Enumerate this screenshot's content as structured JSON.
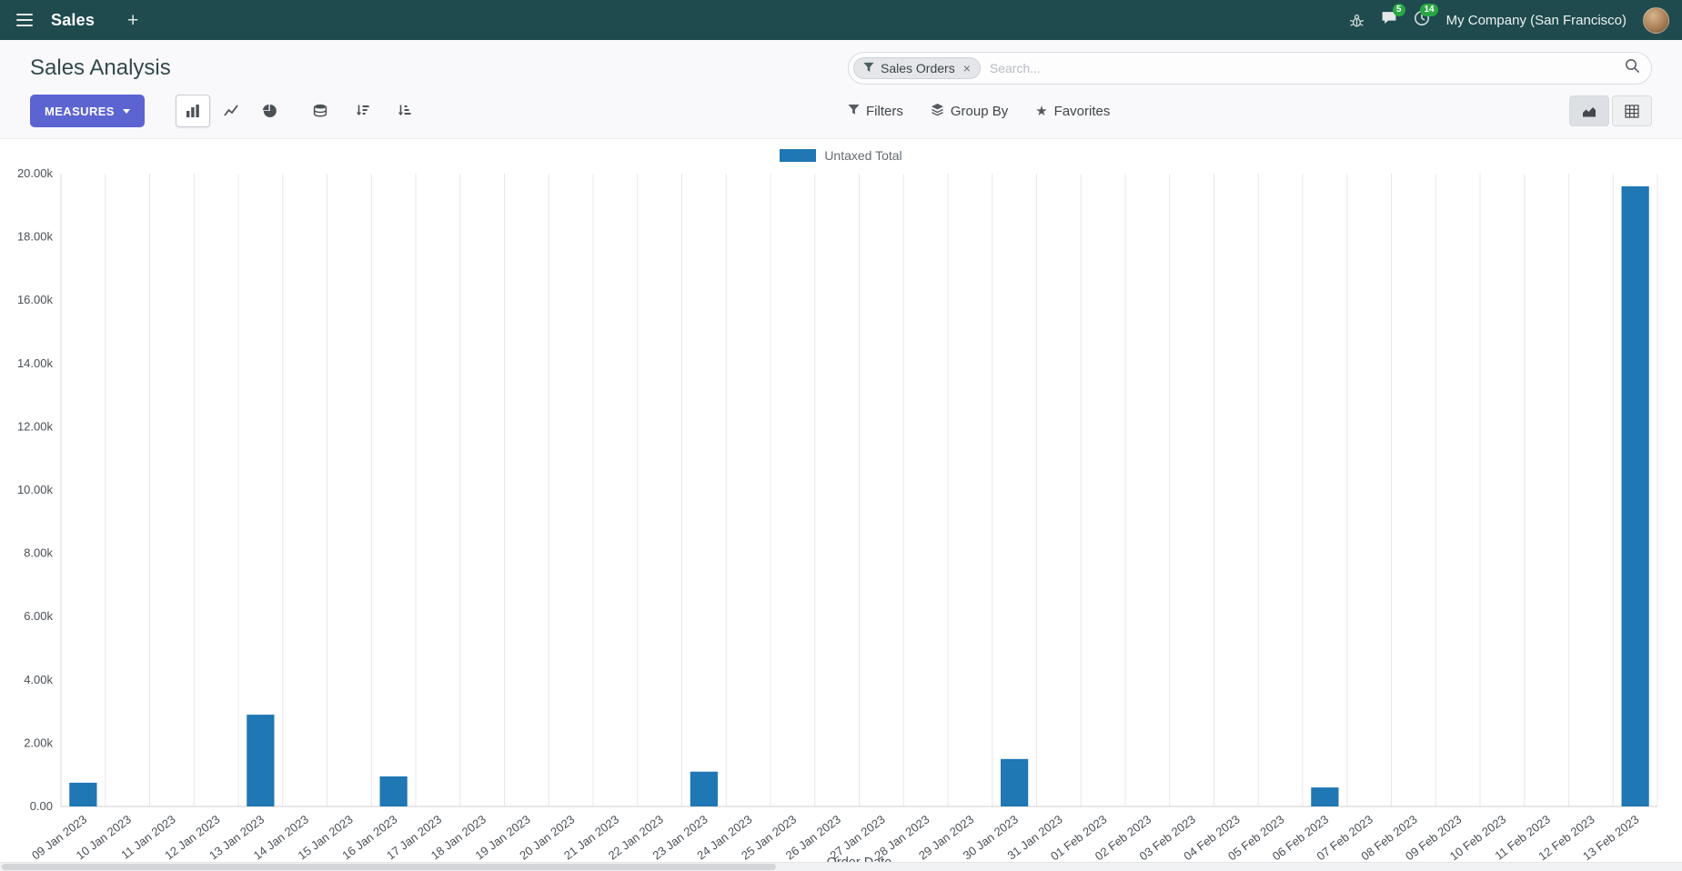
{
  "colors": {
    "navbar": "#1f4b4e",
    "accent": "#5c64d2",
    "bar": "#1f77b4",
    "badge": "#28a745",
    "panel": "#f9f9fb"
  },
  "navbar": {
    "app_name": "Sales",
    "new_label": "+",
    "messages_badge": "5",
    "activity_badge": "14",
    "company": "My Company (San Francisco)"
  },
  "control_panel": {
    "title": "Sales Analysis",
    "measures_label": "MEASURES",
    "search": {
      "facet_label": "Sales Orders",
      "remove_label": "×",
      "placeholder": "Search..."
    },
    "filters_label": "Filters",
    "group_by_label": "Group By",
    "favorites_label": "Favorites"
  },
  "chart_data": {
    "type": "bar",
    "title": "",
    "xlabel": "Order Date",
    "ylabel": "",
    "ylim": [
      0,
      20000
    ],
    "ytick_step": 2000,
    "ytick_labels": [
      "0.00",
      "2.00k",
      "4.00k",
      "6.00k",
      "8.00k",
      "10.00k",
      "12.00k",
      "14.00k",
      "16.00k",
      "18.00k",
      "20.00k"
    ],
    "legend_position": "top",
    "grid": "vertical",
    "categories": [
      "09 Jan 2023",
      "10 Jan 2023",
      "11 Jan 2023",
      "12 Jan 2023",
      "13 Jan 2023",
      "14 Jan 2023",
      "15 Jan 2023",
      "16 Jan 2023",
      "17 Jan 2023",
      "18 Jan 2023",
      "19 Jan 2023",
      "20 Jan 2023",
      "21 Jan 2023",
      "22 Jan 2023",
      "23 Jan 2023",
      "24 Jan 2023",
      "25 Jan 2023",
      "26 Jan 2023",
      "27 Jan 2023",
      "28 Jan 2023",
      "29 Jan 2023",
      "30 Jan 2023",
      "31 Jan 2023",
      "01 Feb 2023",
      "02 Feb 2023",
      "03 Feb 2023",
      "04 Feb 2023",
      "05 Feb 2023",
      "06 Feb 2023",
      "07 Feb 2023",
      "08 Feb 2023",
      "09 Feb 2023",
      "10 Feb 2023",
      "11 Feb 2023",
      "12 Feb 2023",
      "13 Feb 2023"
    ],
    "series": [
      {
        "name": "Untaxed Total",
        "color": "#1f77b4",
        "values": [
          750,
          0,
          0,
          0,
          2900,
          0,
          0,
          950,
          0,
          0,
          0,
          0,
          0,
          0,
          1100,
          0,
          0,
          0,
          0,
          0,
          0,
          1500,
          0,
          0,
          0,
          0,
          0,
          0,
          600,
          0,
          0,
          0,
          0,
          0,
          0,
          19600
        ]
      }
    ]
  }
}
